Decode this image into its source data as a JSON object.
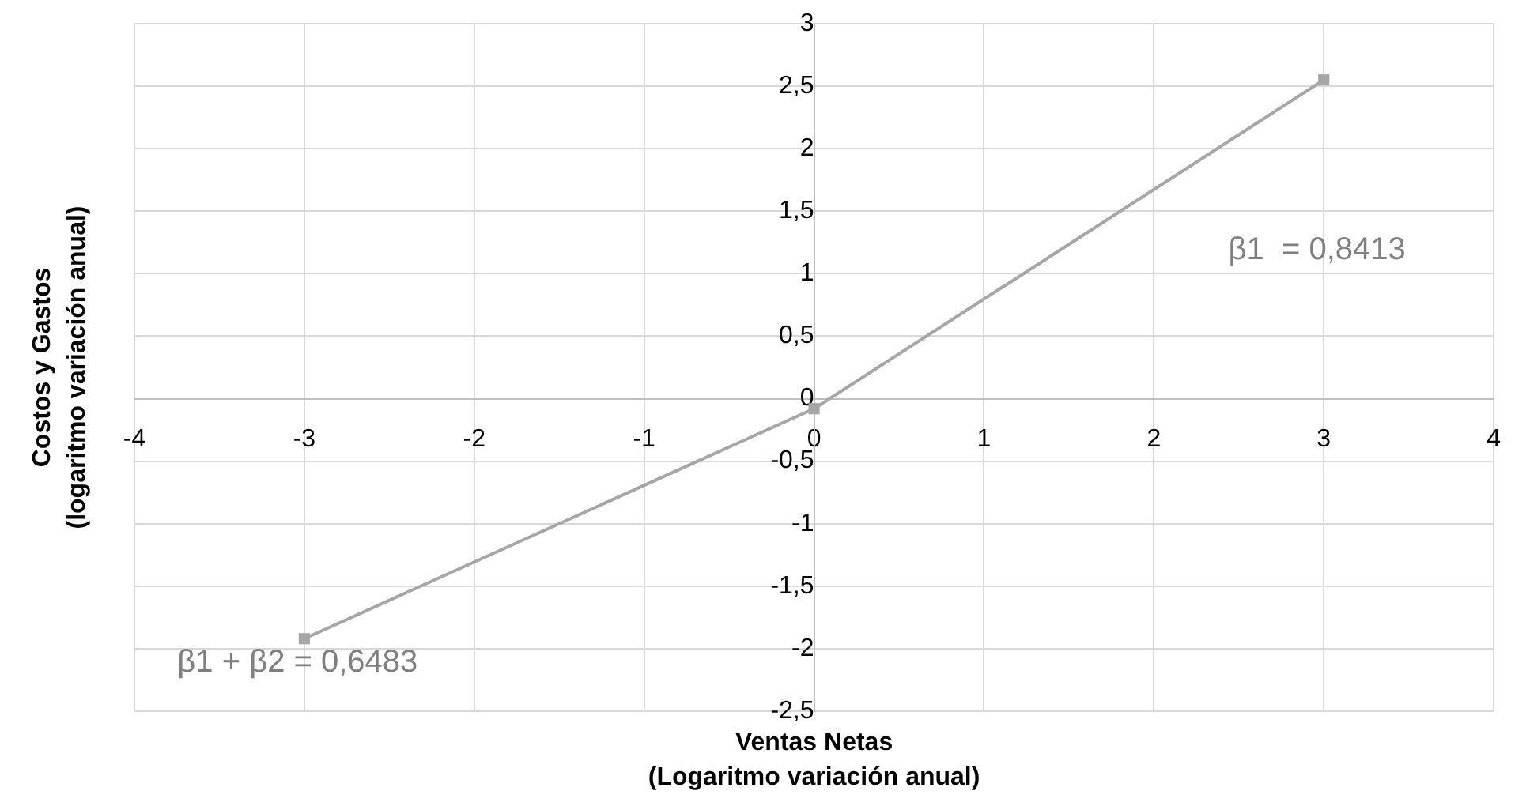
{
  "chart_data": {
    "type": "line",
    "xlabel": "Ventas Netas\n(Logaritmo variación anual)",
    "ylabel": "Costos y Gastos\n(logaritmo variación anual)",
    "x": [
      -3,
      0,
      3
    ],
    "series": [
      {
        "color": "#a6a6a6",
        "values": [
          -1.92,
          -0.08,
          2.55
        ]
      }
    ],
    "xlim": [
      -4,
      4
    ],
    "xticks": [
      -4,
      -3,
      -2,
      -1,
      0,
      1,
      2,
      3,
      4
    ],
    "ylim": [
      -2.5,
      3
    ],
    "yticks": [
      {
        "value": -2.5,
        "label": "-2,5"
      },
      -2,
      {
        "value": -1.5,
        "label": "-1,5"
      },
      -1,
      {
        "value": -0.5,
        "label": "-0,5"
      },
      0,
      {
        "value": 0.5,
        "label": "0,5"
      },
      1,
      {
        "value": 1.5,
        "label": "1,5"
      },
      2,
      {
        "value": 2.5,
        "label": "2,5"
      },
      3
    ],
    "annotations": [
      "β1  = 0,8413",
      "β1 + β2 = 0,6483"
    ],
    "grid": true,
    "legend": false,
    "marker": "square",
    "line_style": "solid"
  }
}
